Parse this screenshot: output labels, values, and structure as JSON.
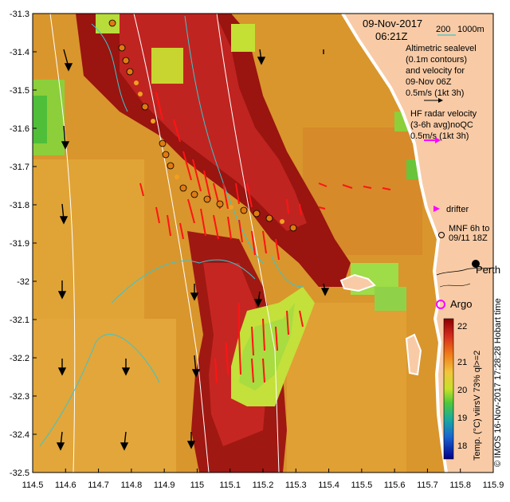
{
  "map": {
    "date": "09-Nov-2017",
    "time": "06:21Z",
    "xlim": [
      114.5,
      115.9
    ],
    "ylim": [
      -32.5,
      -31.3
    ],
    "x_ticks": [
      "114.5",
      "114.6",
      "114.7",
      "114.8",
      "114.9",
      "115",
      "115.1",
      "115.2",
      "115.3",
      "115.4",
      "115.5",
      "115.6",
      "115.7",
      "115.8",
      "115.9"
    ],
    "y_ticks": [
      "-31.3",
      "-31.4",
      "-31.5",
      "-31.6",
      "-31.7",
      "-31.8",
      "-31.9",
      "-32",
      "-32.1",
      "-32.2",
      "-32.3",
      "-32.4",
      "-32.5"
    ]
  },
  "legend": {
    "iso_label": "200",
    "iso_label2": "1000m",
    "altimetric": [
      "Altimetric sealevel",
      "(0.1m contours)",
      "and velocity for",
      "09-Nov 06Z",
      "0.5m/s (1kt 3h)"
    ],
    "hf_radar": [
      "HF radar velocity",
      "(3-6h avg)noQC",
      "0.5m/s (1kt 3h)"
    ],
    "drifter": "drifter",
    "mnf": [
      "MNF 6h to",
      "09/11 18Z"
    ],
    "perth": "Perth",
    "argo": "Argo"
  },
  "colorbar": {
    "ticks": [
      "22",
      "21",
      "20",
      "19",
      "18"
    ],
    "title": "Temp. (°C) viirsV 73% ql>=2"
  },
  "credit": "© IMOS 16-Nov-2017 17:28:28 Hobart time",
  "colors": {
    "background": "#d99a2c",
    "warm": "#c8202a",
    "hot": "#8b0a0a",
    "green": "#9fd63a",
    "land": "#f8cba6",
    "hf_arrow": "#ff1010",
    "drifter": "#ff00ff",
    "iso200": "#40c8d0",
    "iso1000": "#ffffff"
  }
}
